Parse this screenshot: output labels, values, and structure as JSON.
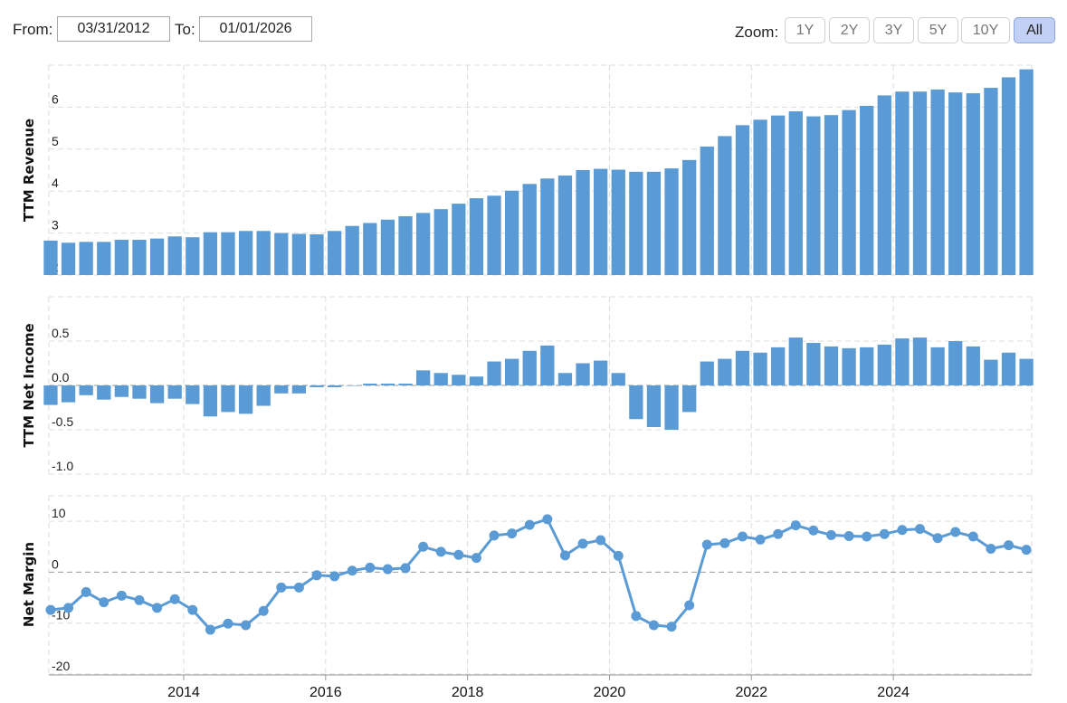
{
  "toolbar": {
    "from_label": "From:",
    "from_value": "03/31/2012",
    "to_label": "To:",
    "to_value": "01/01/2026",
    "zoom_label": "Zoom:",
    "zoom_buttons": [
      "1Y",
      "2Y",
      "3Y",
      "5Y",
      "10Y",
      "All"
    ],
    "active_zoom": "All"
  },
  "colors": {
    "bar": "#5b9bd5",
    "line": "#5b9bd5",
    "grid": "#dddddd",
    "zero": "#999999"
  },
  "chart_data": [
    {
      "type": "bar",
      "ylabel": "TTM Revenue",
      "ylim": [
        2,
        7
      ],
      "yticks": [
        "2",
        "3",
        "4",
        "5",
        "6"
      ],
      "start_quarter": "2012-Q1",
      "values": [
        2.82,
        2.77,
        2.79,
        2.79,
        2.84,
        2.84,
        2.87,
        2.92,
        2.9,
        3.02,
        3.02,
        3.05,
        3.05,
        3.0,
        2.98,
        2.97,
        3.05,
        3.17,
        3.24,
        3.32,
        3.4,
        3.48,
        3.57,
        3.7,
        3.83,
        3.89,
        4.01,
        4.17,
        4.3,
        4.37,
        4.5,
        4.53,
        4.51,
        4.46,
        4.46,
        4.54,
        4.74,
        5.06,
        5.31,
        5.57,
        5.7,
        5.8,
        5.9,
        5.78,
        5.81,
        5.93,
        6.03,
        6.28,
        6.37,
        6.37,
        6.42,
        6.35,
        6.33,
        6.46,
        6.71,
        6.9
      ]
    },
    {
      "type": "bar",
      "ylabel": "TTM Net Income",
      "ylim": [
        -1.0,
        1.0
      ],
      "yticks": [
        "-1.0",
        "-0.5",
        "0.0",
        "0.5"
      ],
      "values": [
        -0.22,
        -0.19,
        -0.11,
        -0.16,
        -0.13,
        -0.15,
        -0.2,
        -0.15,
        -0.21,
        -0.35,
        -0.3,
        -0.32,
        -0.23,
        -0.09,
        -0.09,
        -0.02,
        -0.02,
        0.0,
        0.02,
        0.02,
        0.02,
        0.17,
        0.14,
        0.12,
        0.1,
        0.27,
        0.3,
        0.39,
        0.45,
        0.14,
        0.25,
        0.28,
        0.14,
        -0.38,
        -0.47,
        -0.5,
        -0.3,
        0.27,
        0.3,
        0.39,
        0.37,
        0.43,
        0.54,
        0.48,
        0.44,
        0.42,
        0.43,
        0.46,
        0.53,
        0.54,
        0.43,
        0.5,
        0.44,
        0.29,
        0.37,
        0.3
      ]
    },
    {
      "type": "line",
      "ylabel": "Net Margin",
      "ylim": [
        -20,
        15
      ],
      "yticks": [
        "-20",
        "-10",
        "0",
        "10"
      ],
      "values": [
        -7.4,
        -7.0,
        -3.9,
        -5.9,
        -4.6,
        -5.5,
        -7.0,
        -5.3,
        -7.4,
        -11.3,
        -10.1,
        -10.4,
        -7.6,
        -3.0,
        -3.0,
        -0.6,
        -0.8,
        0.3,
        0.9,
        0.6,
        0.8,
        5.0,
        4.0,
        3.4,
        2.8,
        7.2,
        7.6,
        9.3,
        10.4,
        3.3,
        5.6,
        6.3,
        3.2,
        -8.6,
        -10.4,
        -10.7,
        -6.5,
        5.4,
        5.7,
        7.0,
        6.4,
        7.5,
        9.2,
        8.2,
        7.3,
        7.1,
        7.0,
        7.5,
        8.3,
        8.5,
        6.7,
        7.9,
        7.0,
        4.6,
        5.3,
        4.4
      ]
    }
  ],
  "x_axis": {
    "ticks": [
      "2014",
      "2016",
      "2018",
      "2020",
      "2022",
      "2024"
    ],
    "tick_years": [
      2014,
      2016,
      2018,
      2020,
      2022,
      2024
    ],
    "xlim": [
      2012.1,
      2025.95
    ]
  }
}
